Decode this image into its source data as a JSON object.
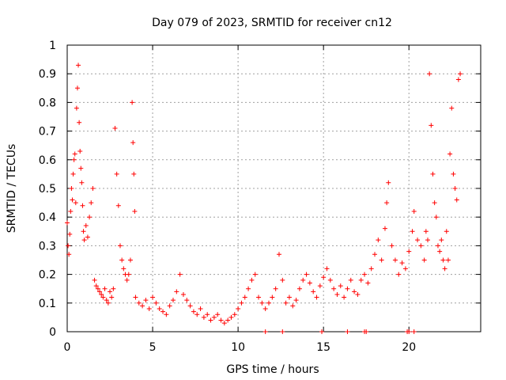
{
  "chart_data": {
    "type": "scatter",
    "title": "Day 079 of 2023, SRMTID for receiver cn12",
    "xlabel": "GPS time / hours",
    "ylabel": "SRMTID / TECUs",
    "xlim": [
      0,
      24.2
    ],
    "ylim": [
      0,
      1
    ],
    "x_ticks": [
      {
        "value": 0,
        "label": "0"
      },
      {
        "value": 5,
        "label": "5"
      },
      {
        "value": 10,
        "label": "10"
      },
      {
        "value": 15,
        "label": "15"
      },
      {
        "value": 20,
        "label": "20"
      }
    ],
    "y_ticks": [
      {
        "value": 0,
        "label": "0"
      },
      {
        "value": 0.1,
        "label": "0.1"
      },
      {
        "value": 0.2,
        "label": "0.2"
      },
      {
        "value": 0.3,
        "label": "0.3"
      },
      {
        "value": 0.4,
        "label": "0.4"
      },
      {
        "value": 0.5,
        "label": "0.5"
      },
      {
        "value": 0.6,
        "label": "0.6"
      },
      {
        "value": 0.7,
        "label": "0.7"
      },
      {
        "value": 0.8,
        "label": "0.8"
      },
      {
        "value": 0.9,
        "label": "0.9"
      },
      {
        "value": 1,
        "label": "1"
      }
    ],
    "grid": true,
    "marker": "+",
    "marker_color": "#ff0000",
    "series": [
      {
        "name": "SRMTID",
        "points": [
          [
            0.0,
            0.38
          ],
          [
            0.05,
            0.3
          ],
          [
            0.1,
            0.27
          ],
          [
            0.15,
            0.34
          ],
          [
            0.2,
            0.42
          ],
          [
            0.25,
            0.5
          ],
          [
            0.3,
            0.46
          ],
          [
            0.35,
            0.55
          ],
          [
            0.4,
            0.6
          ],
          [
            0.45,
            0.62
          ],
          [
            0.5,
            0.45
          ],
          [
            0.55,
            0.78
          ],
          [
            0.6,
            0.85
          ],
          [
            0.65,
            0.93
          ],
          [
            0.7,
            0.73
          ],
          [
            0.75,
            0.63
          ],
          [
            0.8,
            0.57
          ],
          [
            0.85,
            0.52
          ],
          [
            0.9,
            0.44
          ],
          [
            0.95,
            0.35
          ],
          [
            1.0,
            0.32
          ],
          [
            1.1,
            0.37
          ],
          [
            1.2,
            0.33
          ],
          [
            1.3,
            0.4
          ],
          [
            1.4,
            0.45
          ],
          [
            1.5,
            0.5
          ],
          [
            1.6,
            0.18
          ],
          [
            1.7,
            0.16
          ],
          [
            1.8,
            0.15
          ],
          [
            1.9,
            0.14
          ],
          [
            2.0,
            0.13
          ],
          [
            2.1,
            0.12
          ],
          [
            2.2,
            0.15
          ],
          [
            2.3,
            0.11
          ],
          [
            2.4,
            0.1
          ],
          [
            2.5,
            0.14
          ],
          [
            2.6,
            0.12
          ],
          [
            2.7,
            0.15
          ],
          [
            2.8,
            0.71
          ],
          [
            2.9,
            0.55
          ],
          [
            3.0,
            0.44
          ],
          [
            3.1,
            0.3
          ],
          [
            3.2,
            0.25
          ],
          [
            3.3,
            0.22
          ],
          [
            3.4,
            0.2
          ],
          [
            3.5,
            0.18
          ],
          [
            3.6,
            0.2
          ],
          [
            3.7,
            0.25
          ],
          [
            3.8,
            0.8
          ],
          [
            3.85,
            0.66
          ],
          [
            3.9,
            0.55
          ],
          [
            3.95,
            0.42
          ],
          [
            4.0,
            0.12
          ],
          [
            4.2,
            0.1
          ],
          [
            4.4,
            0.09
          ],
          [
            4.6,
            0.11
          ],
          [
            4.8,
            0.08
          ],
          [
            5.0,
            0.12
          ],
          [
            5.2,
            0.1
          ],
          [
            5.4,
            0.08
          ],
          [
            5.6,
            0.07
          ],
          [
            5.8,
            0.06
          ],
          [
            6.0,
            0.09
          ],
          [
            6.2,
            0.11
          ],
          [
            6.4,
            0.14
          ],
          [
            6.6,
            0.2
          ],
          [
            6.8,
            0.13
          ],
          [
            7.0,
            0.11
          ],
          [
            7.2,
            0.09
          ],
          [
            7.4,
            0.07
          ],
          [
            7.6,
            0.06
          ],
          [
            7.8,
            0.08
          ],
          [
            8.0,
            0.05
          ],
          [
            8.2,
            0.06
          ],
          [
            8.4,
            0.04
          ],
          [
            8.6,
            0.05
          ],
          [
            8.8,
            0.06
          ],
          [
            9.0,
            0.04
          ],
          [
            9.2,
            0.03
          ],
          [
            9.4,
            0.04
          ],
          [
            9.6,
            0.05
          ],
          [
            9.8,
            0.06
          ],
          [
            10.0,
            0.08
          ],
          [
            10.2,
            0.1
          ],
          [
            10.4,
            0.12
          ],
          [
            10.6,
            0.15
          ],
          [
            10.8,
            0.18
          ],
          [
            11.0,
            0.2
          ],
          [
            11.2,
            0.12
          ],
          [
            11.4,
            0.1
          ],
          [
            11.6,
            0.08
          ],
          [
            11.8,
            0.1
          ],
          [
            12.0,
            0.12
          ],
          [
            12.2,
            0.15
          ],
          [
            12.4,
            0.27
          ],
          [
            12.6,
            0.18
          ],
          [
            12.8,
            0.1
          ],
          [
            13.0,
            0.12
          ],
          [
            13.2,
            0.09
          ],
          [
            13.4,
            0.11
          ],
          [
            13.6,
            0.15
          ],
          [
            13.8,
            0.18
          ],
          [
            14.0,
            0.2
          ],
          [
            14.2,
            0.17
          ],
          [
            14.4,
            0.14
          ],
          [
            14.6,
            0.12
          ],
          [
            14.8,
            0.16
          ],
          [
            15.0,
            0.19
          ],
          [
            15.2,
            0.22
          ],
          [
            15.4,
            0.18
          ],
          [
            15.6,
            0.15
          ],
          [
            15.8,
            0.13
          ],
          [
            16.0,
            0.16
          ],
          [
            16.2,
            0.12
          ],
          [
            16.4,
            0.15
          ],
          [
            16.6,
            0.18
          ],
          [
            16.8,
            0.14
          ],
          [
            17.0,
            0.13
          ],
          [
            17.2,
            0.18
          ],
          [
            17.4,
            0.2
          ],
          [
            17.6,
            0.17
          ],
          [
            17.8,
            0.22
          ],
          [
            18.0,
            0.27
          ],
          [
            18.2,
            0.32
          ],
          [
            18.4,
            0.25
          ],
          [
            18.6,
            0.36
          ],
          [
            18.7,
            0.45
          ],
          [
            18.8,
            0.52
          ],
          [
            19.0,
            0.3
          ],
          [
            19.2,
            0.25
          ],
          [
            19.4,
            0.2
          ],
          [
            19.6,
            0.24
          ],
          [
            19.8,
            0.22
          ],
          [
            20.0,
            0.28
          ],
          [
            20.2,
            0.35
          ],
          [
            20.3,
            0.42
          ],
          [
            20.5,
            0.32
          ],
          [
            20.7,
            0.3
          ],
          [
            20.9,
            0.25
          ],
          [
            21.0,
            0.35
          ],
          [
            21.1,
            0.32
          ],
          [
            21.2,
            0.9
          ],
          [
            21.3,
            0.72
          ],
          [
            21.4,
            0.55
          ],
          [
            21.5,
            0.45
          ],
          [
            21.6,
            0.4
          ],
          [
            21.7,
            0.3
          ],
          [
            21.8,
            0.28
          ],
          [
            21.9,
            0.32
          ],
          [
            22.0,
            0.25
          ],
          [
            22.1,
            0.22
          ],
          [
            22.2,
            0.35
          ],
          [
            22.3,
            0.25
          ],
          [
            22.4,
            0.62
          ],
          [
            22.5,
            0.78
          ],
          [
            22.6,
            0.55
          ],
          [
            22.7,
            0.5
          ],
          [
            22.8,
            0.46
          ],
          [
            22.9,
            0.88
          ],
          [
            23.0,
            0.9
          ],
          [
            11.6,
            0.0
          ],
          [
            12.6,
            0.0
          ],
          [
            14.9,
            0.0
          ],
          [
            16.4,
            0.0
          ],
          [
            17.4,
            0.0
          ],
          [
            17.5,
            0.0
          ],
          [
            19.9,
            0.0
          ],
          [
            20.0,
            0.0
          ],
          [
            20.3,
            0.0
          ]
        ]
      }
    ]
  }
}
